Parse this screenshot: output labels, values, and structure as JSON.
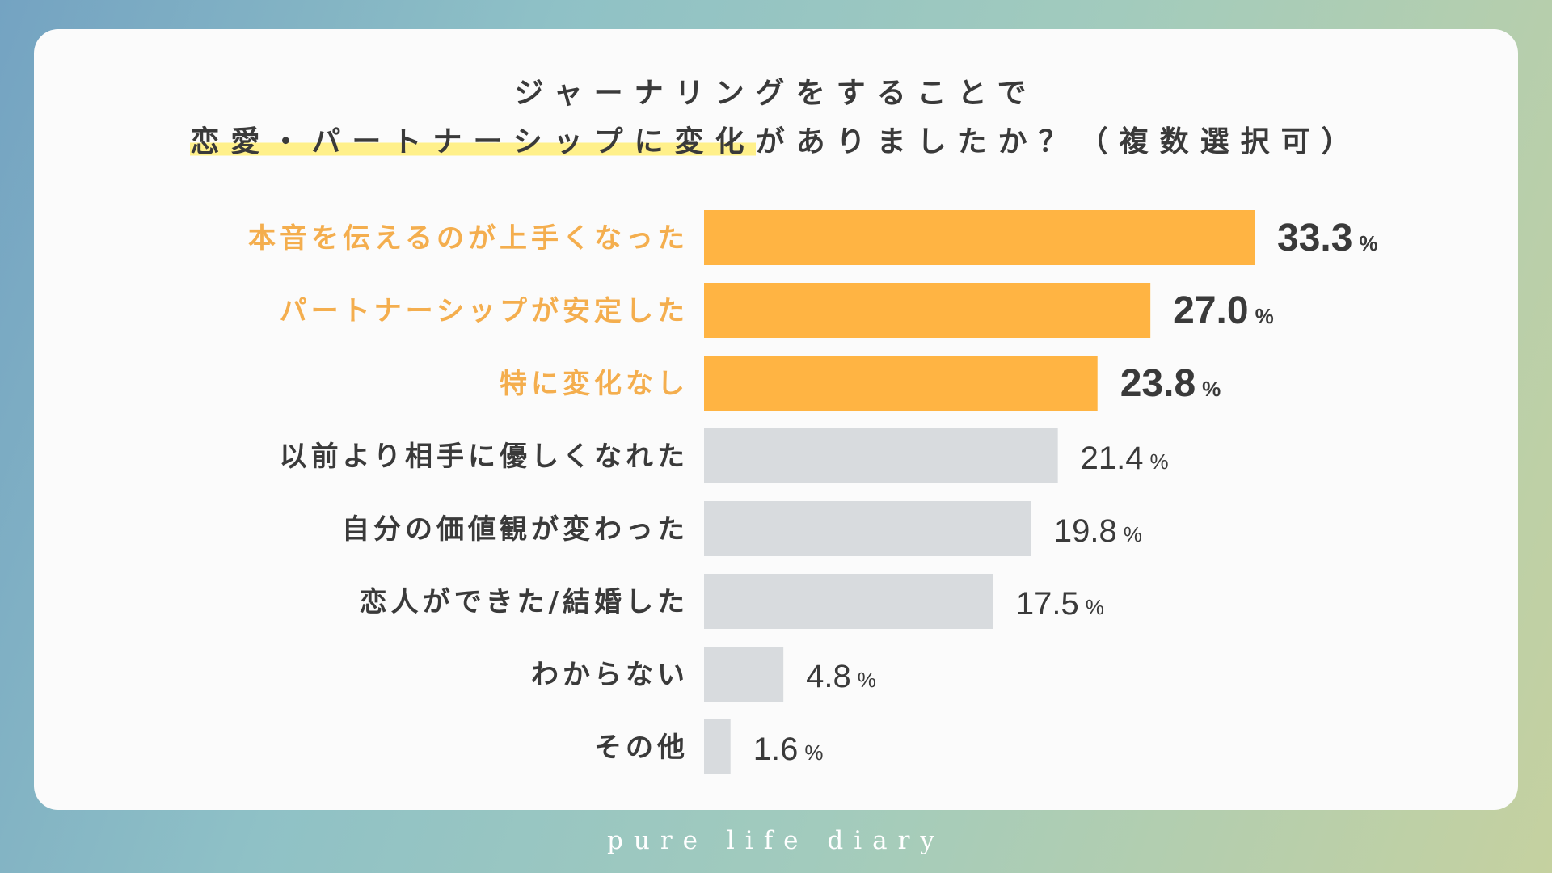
{
  "title": {
    "line1": "ジャーナリングをすることで",
    "line2_highlight": "恋愛・パートナーシップに変化",
    "line2_rest": "がありましたか？（複数選択可）"
  },
  "brand": "pure life diary",
  "unit": "%",
  "colors": {
    "highlight_bar": "#ffb443",
    "highlight_label": "#f4ae4e",
    "normal_bar": "#d8dbde",
    "normal_label": "#3a3a3a",
    "title_highlight": "#fff08a"
  },
  "chart_data": {
    "type": "bar",
    "orientation": "horizontal",
    "categories": [
      "本音を伝えるのが上手くなった",
      "パートナーシップが安定した",
      "特に変化なし",
      "以前より相手に優しくなれた",
      "自分の価値観が変わった",
      "恋人ができた/結婚した",
      "わからない",
      "その他"
    ],
    "values": [
      33.3,
      27.0,
      23.8,
      21.4,
      19.8,
      17.5,
      4.8,
      1.6
    ],
    "value_labels": [
      "33.3",
      "27.0",
      "23.8",
      "21.4",
      "19.8",
      "17.5",
      "4.8",
      "1.6"
    ],
    "highlighted": [
      true,
      true,
      true,
      false,
      false,
      false,
      false,
      false
    ],
    "xlim": [
      0,
      33.3
    ],
    "grid": false,
    "legend": "none"
  }
}
